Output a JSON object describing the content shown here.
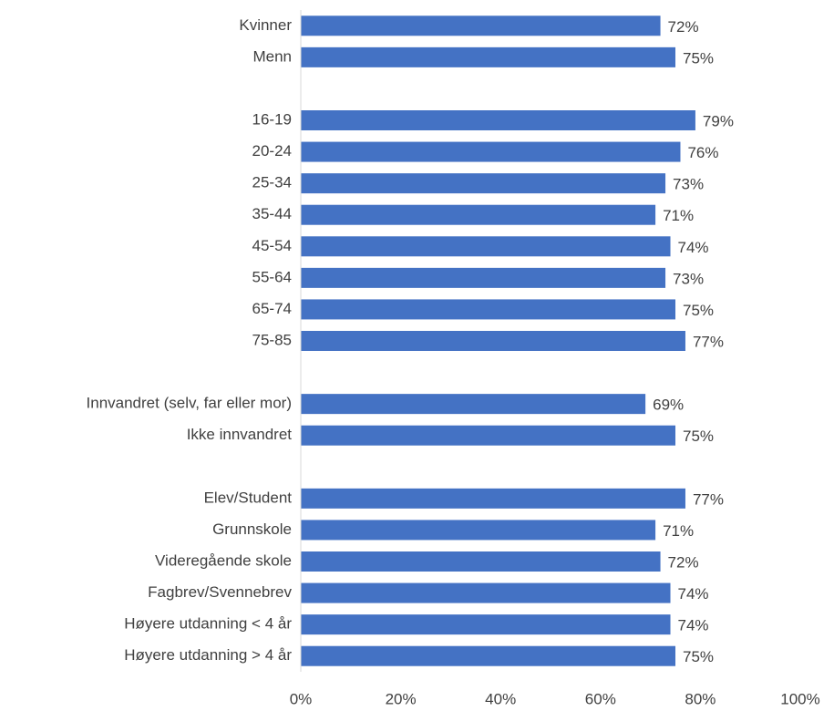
{
  "chart_data": {
    "type": "barh",
    "categories": [
      "Kvinner",
      "Menn",
      null,
      "16-19",
      "20-24",
      "25-34",
      "35-44",
      "45-54",
      "55-64",
      "65-74",
      "75-85",
      null,
      "Innvandret (selv, far eller mor)",
      "Ikke innvandret",
      null,
      "Elev/Student",
      "Grunnskole",
      "Videregående skole",
      "Fagbrev/Svennebrev",
      "Høyere utdanning < 4 år",
      "Høyere utdanning > 4 år"
    ],
    "values": [
      72,
      75,
      null,
      79,
      76,
      73,
      71,
      74,
      73,
      75,
      77,
      null,
      69,
      75,
      null,
      77,
      71,
      72,
      74,
      74,
      75
    ],
    "value_labels": [
      "72%",
      "75%",
      null,
      "79%",
      "76%",
      "73%",
      "71%",
      "74%",
      "73%",
      "75%",
      "77%",
      null,
      "69%",
      "75%",
      null,
      "77%",
      "71%",
      "72%",
      "74%",
      "74%",
      "75%"
    ],
    "color": "#4472c4",
    "xlim": [
      0,
      100
    ],
    "xticks": [
      {
        "value": 0,
        "label": "0%"
      },
      {
        "value": 20,
        "label": "20%"
      },
      {
        "value": 40,
        "label": "40%"
      },
      {
        "value": 60,
        "label": "60%"
      },
      {
        "value": 80,
        "label": "80%"
      },
      {
        "value": 100,
        "label": "100%"
      }
    ],
    "grid": false
  }
}
